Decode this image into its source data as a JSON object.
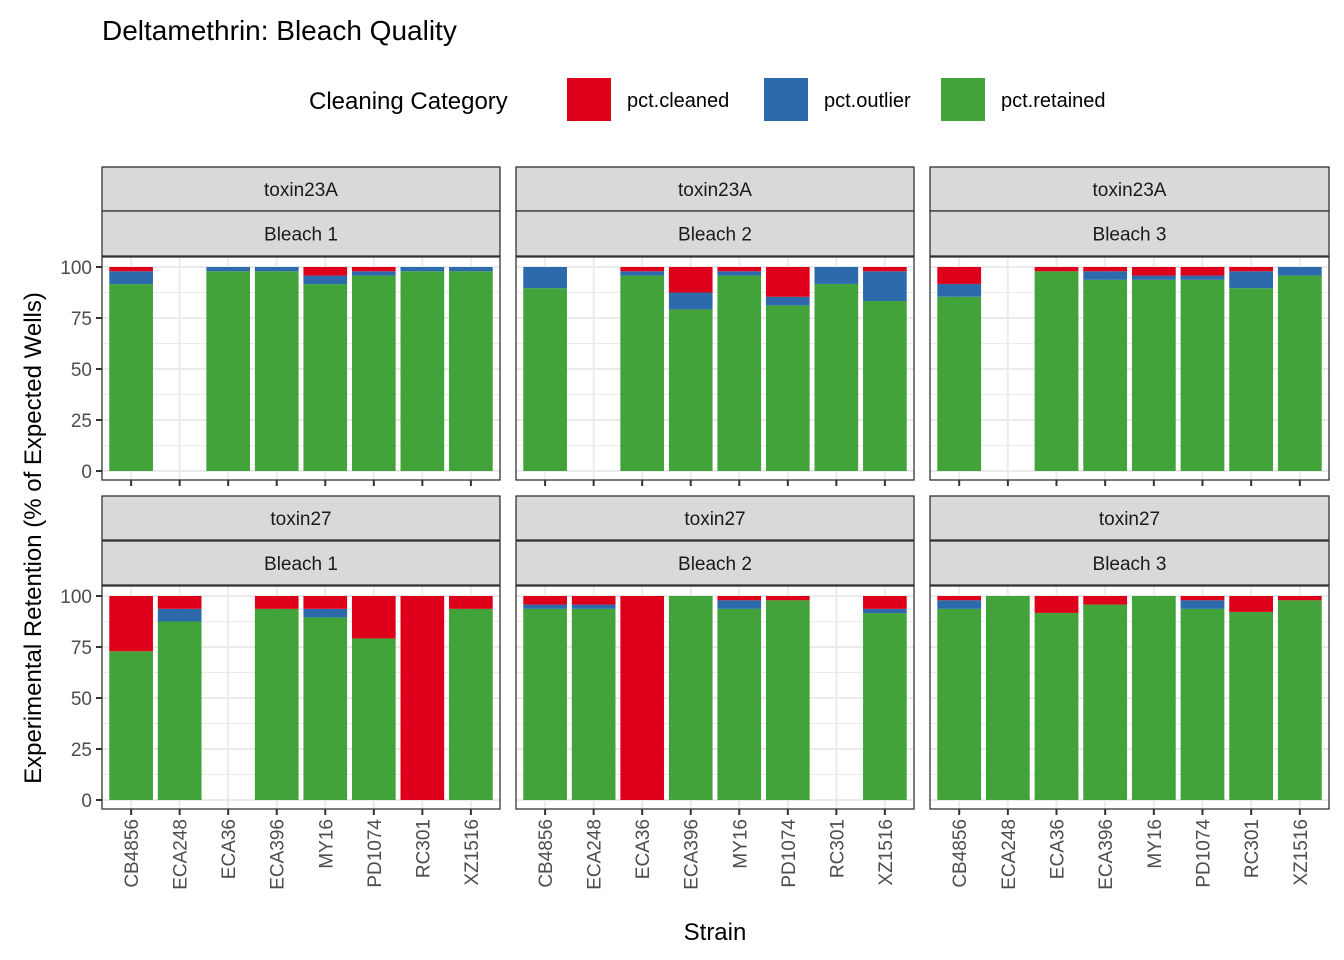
{
  "chart_data": {
    "type": "bar",
    "stacked": true,
    "title": "Deltamethrin: Bleach Quality",
    "xlabel": "Strain",
    "ylabel": "Experimental Retention (% of Expected Wells)",
    "ylim": [
      0,
      100
    ],
    "yticks": [
      0,
      25,
      50,
      75,
      100
    ],
    "grid": true,
    "legend": {
      "title": "Cleaning Category",
      "placement": "top",
      "entries": [
        {
          "name": "pct.cleaned",
          "color": "#de001a"
        },
        {
          "name": "pct.outlier",
          "color": "#2d6aab"
        },
        {
          "name": "pct.retained",
          "color": "#41a33a"
        }
      ]
    },
    "categories": [
      "CB4856",
      "ECA248",
      "ECA36",
      "ECA396",
      "MY16",
      "PD1074",
      "RC301",
      "XZ1516"
    ],
    "stack_order_bottom_to_top": [
      "pct.retained",
      "pct.outlier",
      "pct.cleaned"
    ],
    "facets": [
      {
        "toxin": "toxin23A",
        "bleach": "Bleach 1",
        "series": {
          "pct.retained": [
            91.6,
            null,
            97.9,
            97.9,
            91.6,
            95.8,
            97.9,
            97.9
          ],
          "pct.outlier": [
            6.3,
            null,
            2.1,
            2.1,
            4.2,
            2.1,
            2.1,
            2.1
          ],
          "pct.cleaned": [
            2.1,
            null,
            0,
            0,
            4.2,
            2.1,
            0,
            0
          ]
        }
      },
      {
        "toxin": "toxin23A",
        "bleach": "Bleach 2",
        "series": {
          "pct.retained": [
            89.6,
            null,
            95.8,
            79.2,
            95.8,
            81.2,
            91.7,
            83.3
          ],
          "pct.outlier": [
            10.4,
            null,
            2.1,
            8.3,
            2.1,
            4.2,
            8.3,
            14.6
          ],
          "pct.cleaned": [
            0,
            null,
            2.1,
            12.5,
            2.1,
            14.6,
            0,
            2.1
          ]
        }
      },
      {
        "toxin": "toxin23A",
        "bleach": "Bleach 3",
        "series": {
          "pct.retained": [
            85.4,
            null,
            97.9,
            93.7,
            93.7,
            93.7,
            89.6,
            95.8
          ],
          "pct.outlier": [
            6.3,
            null,
            0,
            4.2,
            2.1,
            2.1,
            8.3,
            4.2
          ],
          "pct.cleaned": [
            8.3,
            null,
            2.1,
            2.1,
            4.2,
            4.2,
            2.1,
            0
          ]
        }
      },
      {
        "toxin": "toxin27",
        "bleach": "Bleach 1",
        "series": {
          "pct.retained": [
            72.9,
            87.5,
            null,
            93.7,
            89.5,
            79.2,
            0,
            93.7
          ],
          "pct.outlier": [
            0,
            6.2,
            null,
            0,
            4.2,
            0,
            0,
            0
          ],
          "pct.cleaned": [
            27.1,
            6.3,
            null,
            6.3,
            6.3,
            20.8,
            100,
            6.3
          ]
        }
      },
      {
        "toxin": "toxin27",
        "bleach": "Bleach 2",
        "series": {
          "pct.retained": [
            93.7,
            93.7,
            0,
            100,
            93.7,
            97.9,
            null,
            91.6
          ],
          "pct.outlier": [
            2.1,
            2.1,
            0,
            0,
            4.2,
            0,
            null,
            2.1
          ],
          "pct.cleaned": [
            4.2,
            4.2,
            100,
            0,
            2.1,
            2.1,
            null,
            6.3
          ]
        }
      },
      {
        "toxin": "toxin27",
        "bleach": "Bleach 3",
        "series": {
          "pct.retained": [
            93.7,
            100,
            91.7,
            95.8,
            100,
            93.7,
            92.2,
            97.9
          ],
          "pct.outlier": [
            4.2,
            0,
            0,
            0,
            0,
            4.2,
            0,
            0
          ],
          "pct.cleaned": [
            2.1,
            0,
            8.3,
            4.2,
            0,
            2.1,
            7.8,
            2.1
          ]
        }
      }
    ]
  }
}
